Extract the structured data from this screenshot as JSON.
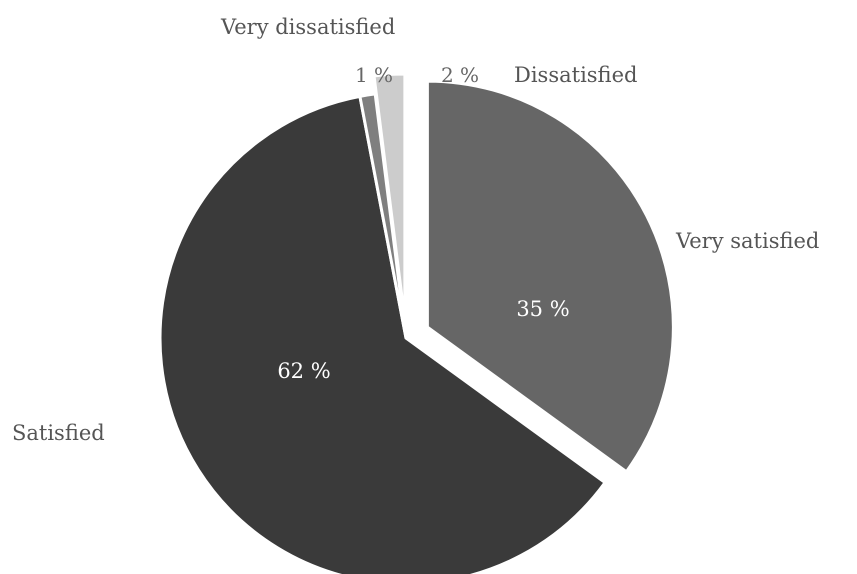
{
  "chart_data": {
    "type": "pie",
    "title": "",
    "slices": [
      {
        "name": "Very satisfied",
        "value": 35,
        "value_label": "35 %",
        "color": "#666666",
        "exploded": true
      },
      {
        "name": "Satisfied",
        "value": 62,
        "value_label": "62 %",
        "color": "#3a3a3a",
        "exploded": false
      },
      {
        "name": "Very dissatisfied",
        "value": 1,
        "value_label": "1 %",
        "color": "#7f7f7f",
        "exploded": false
      },
      {
        "name": "Dissatisfied",
        "value": 2,
        "value_label": "2 %",
        "color": "#cccccc",
        "exploded": true
      }
    ],
    "legend": "none",
    "label_placement": "category names outside, percentages on slices"
  }
}
